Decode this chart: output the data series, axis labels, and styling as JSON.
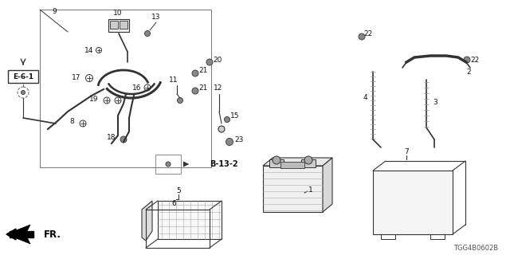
{
  "bg_color": "#ffffff",
  "diagram_code": "TGG4B0602B",
  "fr_label": "FR.",
  "E61_label": "E-6-1",
  "B132_label": "B-13-2",
  "lc": "#333333",
  "fs": 6.5,
  "fs_bold": 7.5
}
